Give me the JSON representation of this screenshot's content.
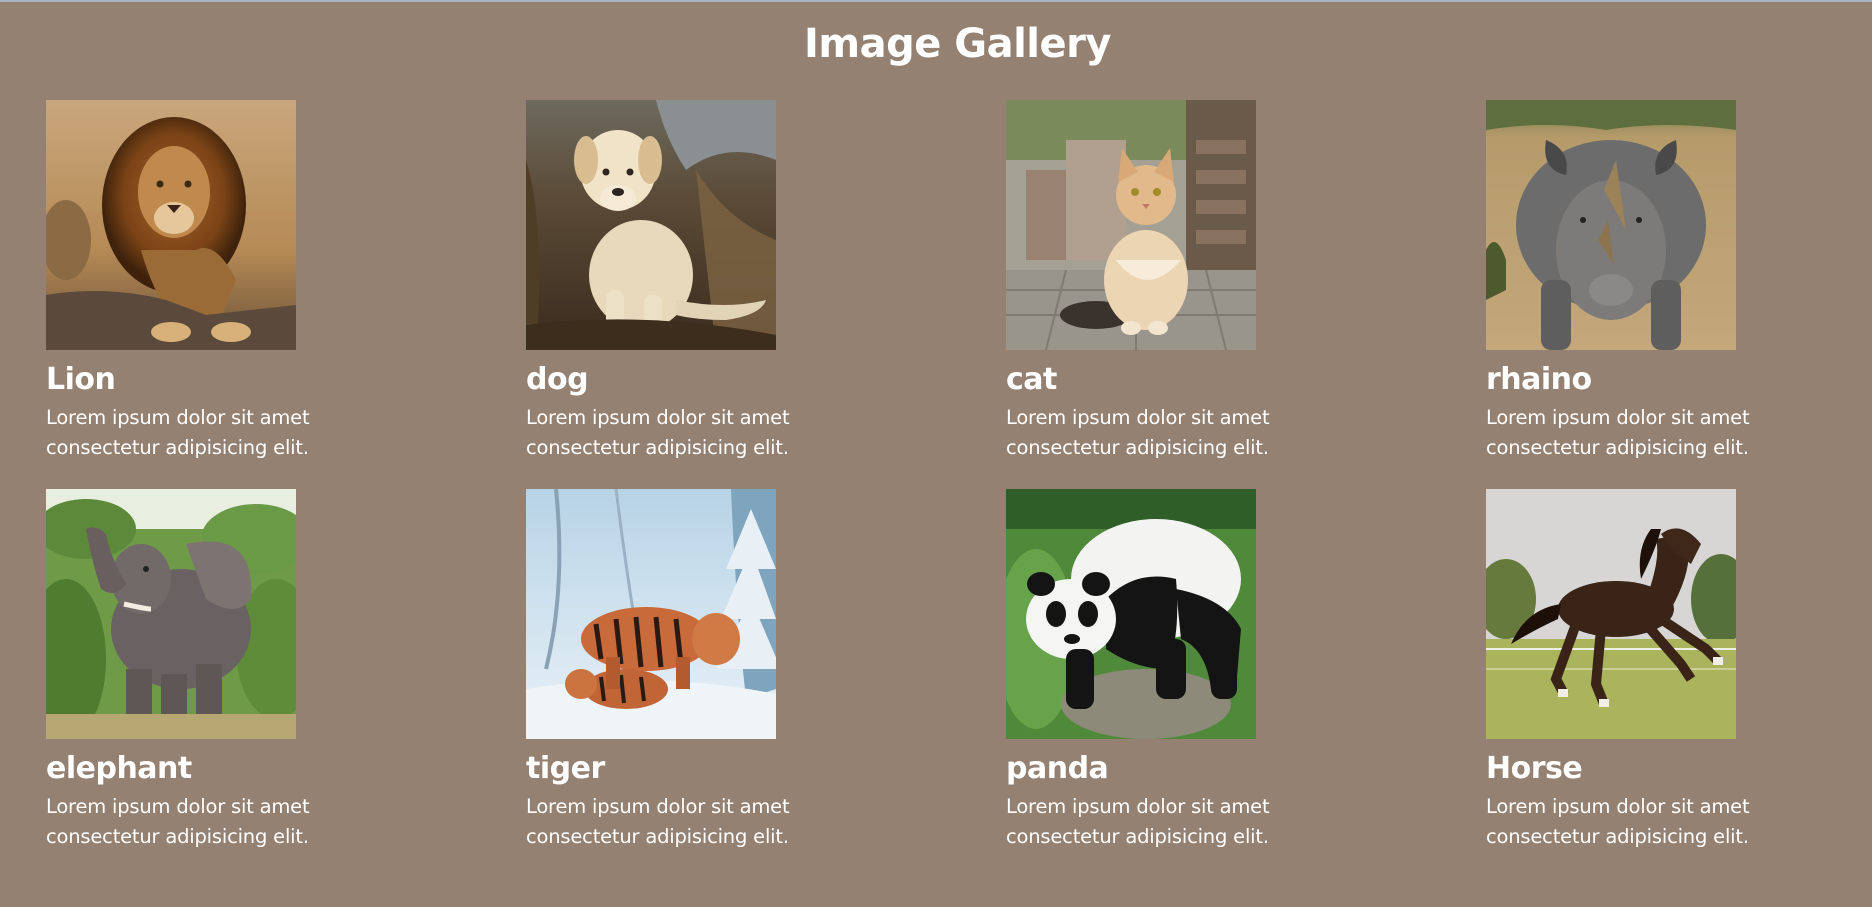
{
  "page": {
    "title": "Image Gallery"
  },
  "colors": {
    "background": "#948172",
    "text": "#ffffff",
    "top_border": "#a7b4c4"
  },
  "gallery": {
    "items": [
      {
        "title": "Lion",
        "text": "Lorem ipsum dolor sit amet consectetur adipisicing elit.",
        "icon": "lion-image"
      },
      {
        "title": "dog",
        "text": "Lorem ipsum dolor sit amet consectetur adipisicing elit.",
        "icon": "dog-image"
      },
      {
        "title": "cat",
        "text": "Lorem ipsum dolor sit amet consectetur adipisicing elit.",
        "icon": "cat-image"
      },
      {
        "title": "rhaino",
        "text": "Lorem ipsum dolor sit amet consectetur adipisicing elit.",
        "icon": "rhino-image"
      },
      {
        "title": "elephant",
        "text": "Lorem ipsum dolor sit amet consectetur adipisicing elit.",
        "icon": "elephant-image"
      },
      {
        "title": "tiger",
        "text": "Lorem ipsum dolor sit amet consectetur adipisicing elit.",
        "icon": "tiger-image"
      },
      {
        "title": "panda",
        "text": "Lorem ipsum dolor sit amet consectetur adipisicing elit.",
        "icon": "panda-image"
      },
      {
        "title": "Horse",
        "text": "Lorem ipsum dolor sit amet consectetur adipisicing elit.",
        "icon": "horse-image"
      }
    ]
  }
}
